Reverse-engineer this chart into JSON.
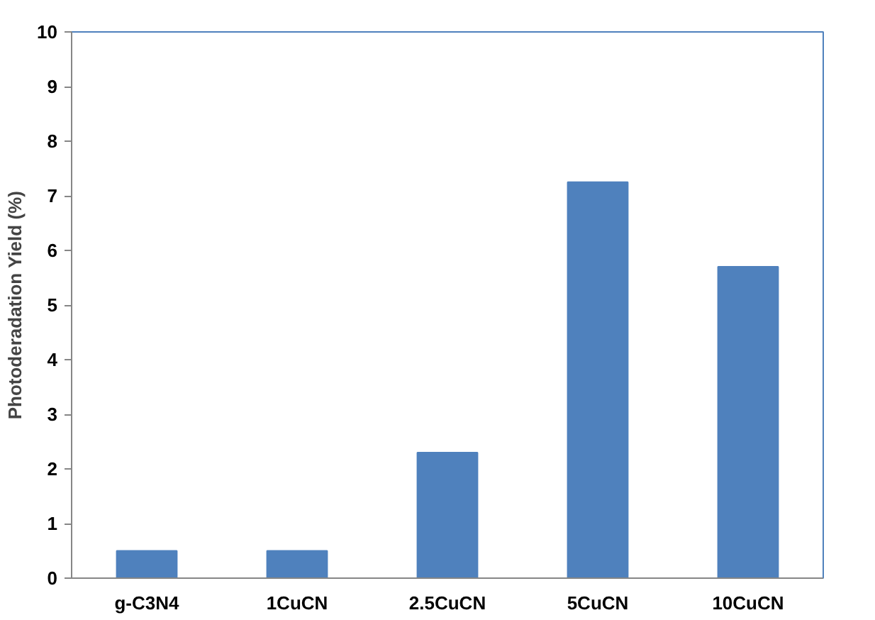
{
  "chart_data": {
    "type": "bar",
    "ylabel": "Photoderadation Yield (%)",
    "categories": [
      "g-C3N4",
      "1CuCN",
      "2.5CuCN",
      "5CuCN",
      "10CuCN"
    ],
    "values": [
      0.5,
      0.5,
      2.3,
      7.25,
      5.7
    ],
    "color": "#4f81bd",
    "ylim": [
      0,
      10
    ],
    "yticks": [
      0,
      1,
      2,
      3,
      4,
      5,
      6,
      7,
      8,
      9,
      10
    ],
    "grid": false
  }
}
